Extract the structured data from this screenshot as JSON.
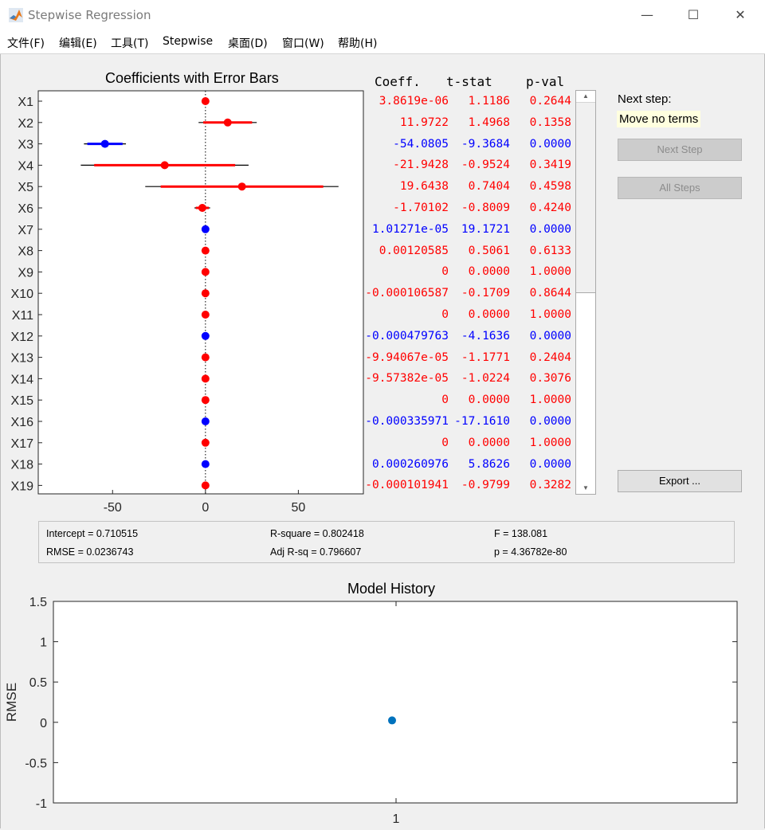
{
  "window": {
    "title": "Stepwise Regression",
    "minimize_glyph": "—",
    "maximize_glyph": "☐",
    "close_glyph": "✕"
  },
  "menu": [
    "文件(F)",
    "编辑(E)",
    "工具(T)",
    "Stepwise",
    "桌面(D)",
    "窗口(W)",
    "帮助(H)"
  ],
  "coef_plot": {
    "title": "Coefficients with Error Bars",
    "x_ticks": [
      "-50",
      "0",
      "50"
    ],
    "colors": {
      "in_model": "#0000ff",
      "out_model": "#ff0000",
      "ci": "#000000"
    }
  },
  "table": {
    "headers": {
      "coeff": "Coeff.",
      "tstat": "t-stat",
      "pval": "p-val"
    },
    "rows": [
      {
        "name": "X1",
        "coeff": "3.8619e-06",
        "tstat": "1.1186",
        "pval": "0.2644",
        "in": false,
        "est": 0.0,
        "ci_lo": 0.0,
        "ci_hi": 0.0,
        "ci90_lo": 0.0,
        "ci90_hi": 0.0
      },
      {
        "name": "X2",
        "coeff": "11.9722",
        "tstat": "1.4968",
        "pval": "0.1358",
        "in": false,
        "est": 11.97,
        "ci_lo": -3.7,
        "ci_hi": 27.6,
        "ci90_lo": -1.2,
        "ci90_hi": 25.1
      },
      {
        "name": "X3",
        "coeff": "-54.0805",
        "tstat": "-9.3684",
        "pval": "0.0000",
        "in": true,
        "est": -54.08,
        "ci_lo": -65.4,
        "ci_hi": -42.8,
        "ci90_lo": -63.6,
        "ci90_hi": -44.6
      },
      {
        "name": "X4",
        "coeff": "-21.9428",
        "tstat": "-0.9524",
        "pval": "0.3419",
        "in": false,
        "est": -21.94,
        "ci_lo": -67.1,
        "ci_hi": 23.2,
        "ci90_lo": -59.9,
        "ci90_hi": 16.0
      },
      {
        "name": "X5",
        "coeff": "19.6438",
        "tstat": "0.7404",
        "pval": "0.4598",
        "in": false,
        "est": 19.64,
        "ci_lo": -32.4,
        "ci_hi": 71.6,
        "ci90_lo": -24.1,
        "ci90_hi": 63.4
      },
      {
        "name": "X6",
        "coeff": "-1.70102",
        "tstat": "-0.8009",
        "pval": "0.4240",
        "in": false,
        "est": -1.7,
        "ci_lo": -5.9,
        "ci_hi": 2.5,
        "ci90_lo": -5.2,
        "ci90_hi": 1.8
      },
      {
        "name": "X7",
        "coeff": "1.01271e-05",
        "tstat": "19.1721",
        "pval": "0.0000",
        "in": true,
        "est": 0.0,
        "ci_lo": 0.0,
        "ci_hi": 0.0,
        "ci90_lo": 0.0,
        "ci90_hi": 0.0
      },
      {
        "name": "X8",
        "coeff": "0.00120585",
        "tstat": "0.5061",
        "pval": "0.6133",
        "in": false,
        "est": 0.0,
        "ci_lo": 0.0,
        "ci_hi": 0.0,
        "ci90_lo": 0.0,
        "ci90_hi": 0.0
      },
      {
        "name": "X9",
        "coeff": "0",
        "tstat": "0.0000",
        "pval": "1.0000",
        "in": false,
        "est": 0.0,
        "ci_lo": 0.0,
        "ci_hi": 0.0,
        "ci90_lo": 0.0,
        "ci90_hi": 0.0
      },
      {
        "name": "X10",
        "coeff": "-0.000106587",
        "tstat": "-0.1709",
        "pval": "0.8644",
        "in": false,
        "est": 0.0,
        "ci_lo": 0.0,
        "ci_hi": 0.0,
        "ci90_lo": 0.0,
        "ci90_hi": 0.0
      },
      {
        "name": "X11",
        "coeff": "0",
        "tstat": "0.0000",
        "pval": "1.0000",
        "in": false,
        "est": 0.0,
        "ci_lo": 0.0,
        "ci_hi": 0.0,
        "ci90_lo": 0.0,
        "ci90_hi": 0.0
      },
      {
        "name": "X12",
        "coeff": "-0.000479763",
        "tstat": "-4.1636",
        "pval": "0.0000",
        "in": true,
        "est": 0.0,
        "ci_lo": 0.0,
        "ci_hi": 0.0,
        "ci90_lo": 0.0,
        "ci90_hi": 0.0
      },
      {
        "name": "X13",
        "coeff": "-9.94067e-05",
        "tstat": "-1.1771",
        "pval": "0.2404",
        "in": false,
        "est": 0.0,
        "ci_lo": 0.0,
        "ci_hi": 0.0,
        "ci90_lo": 0.0,
        "ci90_hi": 0.0
      },
      {
        "name": "X14",
        "coeff": "-9.57382e-05",
        "tstat": "-1.0224",
        "pval": "0.3076",
        "in": false,
        "est": 0.0,
        "ci_lo": 0.0,
        "ci_hi": 0.0,
        "ci90_lo": 0.0,
        "ci90_hi": 0.0
      },
      {
        "name": "X15",
        "coeff": "0",
        "tstat": "0.0000",
        "pval": "1.0000",
        "in": false,
        "est": 0.0,
        "ci_lo": 0.0,
        "ci_hi": 0.0,
        "ci90_lo": 0.0,
        "ci90_hi": 0.0
      },
      {
        "name": "X16",
        "coeff": "-0.000335971",
        "tstat": "-17.1610",
        "pval": "0.0000",
        "in": true,
        "est": 0.0,
        "ci_lo": 0.0,
        "ci_hi": 0.0,
        "ci90_lo": 0.0,
        "ci90_hi": 0.0
      },
      {
        "name": "X17",
        "coeff": "0",
        "tstat": "0.0000",
        "pval": "1.0000",
        "in": false,
        "est": 0.0,
        "ci_lo": 0.0,
        "ci_hi": 0.0,
        "ci90_lo": 0.0,
        "ci90_hi": 0.0
      },
      {
        "name": "X18",
        "coeff": "0.000260976",
        "tstat": "5.8626",
        "pval": "0.0000",
        "in": true,
        "est": 0.0,
        "ci_lo": 0.0,
        "ci_hi": 0.0,
        "ci90_lo": 0.0,
        "ci90_hi": 0.0
      },
      {
        "name": "X19",
        "coeff": "-0.000101941",
        "tstat": "-0.9799",
        "pval": "0.3282",
        "in": false,
        "est": 0.0,
        "ci_lo": 0.0,
        "ci_hi": 0.0,
        "ci90_lo": 0.0,
        "ci90_hi": 0.0
      }
    ]
  },
  "next_step": {
    "label": "Next step:",
    "value": "Move no terms"
  },
  "buttons": {
    "next_step": "Next Step",
    "all_steps": "All Steps",
    "export": "Export ..."
  },
  "stats": {
    "intercept": "Intercept = 0.710515",
    "rsquare": "R-square = 0.802418",
    "f": "F = 138.081",
    "rmse": "RMSE = 0.0236743",
    "adjrsq": "Adj R-sq = 0.796607",
    "p": "p = 4.36782e-80"
  },
  "history_plot": {
    "title": "Model History",
    "ylabel": "RMSE",
    "y_ticks": [
      "1.5",
      "1",
      "0.5",
      "0",
      "-0.5",
      "-1"
    ],
    "x_ticks": [
      "1"
    ],
    "point_color": "#0072bd"
  },
  "chart_data": [
    {
      "type": "scatter",
      "title": "Coefficients with Error Bars",
      "categories": [
        "X1",
        "X2",
        "X3",
        "X4",
        "X5",
        "X6",
        "X7",
        "X8",
        "X9",
        "X10",
        "X11",
        "X12",
        "X13",
        "X14",
        "X15",
        "X16",
        "X17",
        "X18",
        "X19"
      ],
      "values": [
        0.0,
        11.9722,
        -54.0805,
        -21.9428,
        19.6438,
        -1.70102,
        0.0,
        0.0,
        0.0,
        0.0,
        0.0,
        0.0,
        0.0,
        0.0,
        0.0,
        0.0,
        0.0,
        0.0,
        0.0
      ],
      "xlim": [
        -90,
        85
      ]
    },
    {
      "type": "scatter",
      "title": "Model History",
      "x": [
        1
      ],
      "y": [
        0.0236743
      ],
      "ylabel": "RMSE",
      "ylim": [
        -1,
        1.5
      ]
    }
  ]
}
